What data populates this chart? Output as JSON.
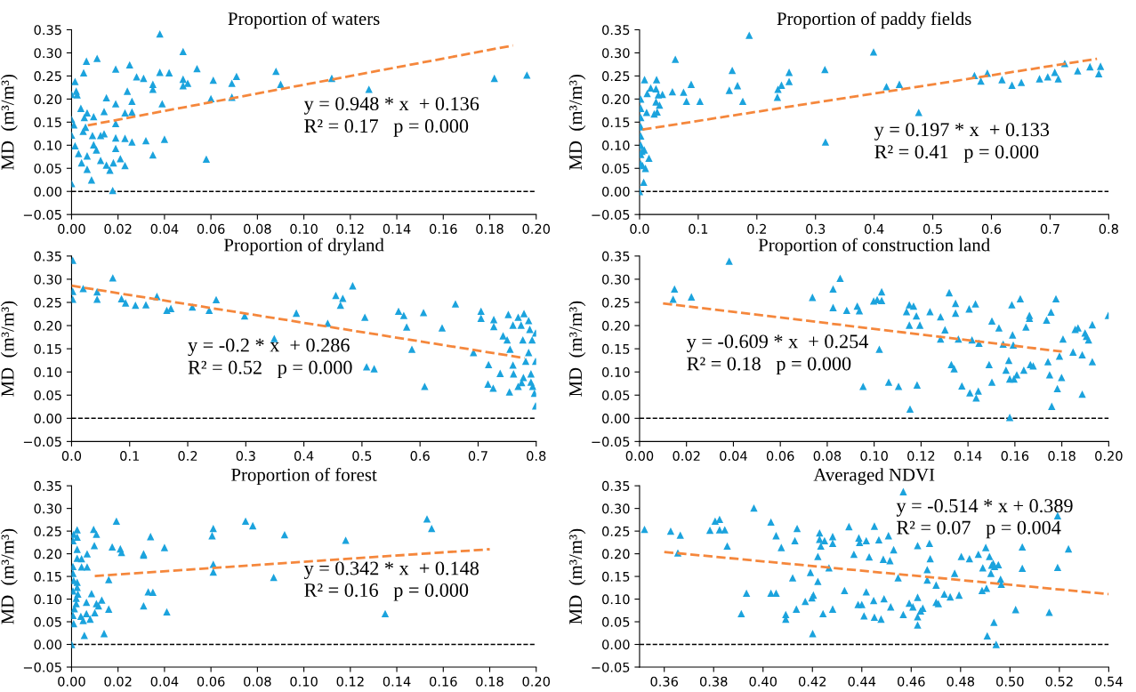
{
  "chart_data": [
    {
      "type": "scatter",
      "title": "Proportion of waters",
      "ylabel": "MD  (m³/m³)",
      "marker": "triangle",
      "grid": false,
      "xlim": [
        0,
        0.2
      ],
      "xticks": [
        {
          "value": 0,
          "label": "0.00"
        },
        {
          "value": 0.02,
          "label": "0.02"
        },
        {
          "value": 0.04,
          "label": "0.04"
        },
        {
          "value": 0.06,
          "label": "0.06"
        },
        {
          "value": 0.08,
          "label": "0.08"
        },
        {
          "value": 0.1,
          "label": "0.10"
        },
        {
          "value": 0.12,
          "label": "0.12"
        },
        {
          "value": 0.14,
          "label": "0.14"
        },
        {
          "value": 0.16,
          "label": "0.16"
        },
        {
          "value": 0.18,
          "label": "0.18"
        },
        {
          "value": 0.2,
          "label": "0.20"
        }
      ],
      "ylim": [
        -0.05,
        0.35
      ],
      "yticks": [
        {
          "value": -0.05,
          "label": "−0.05"
        },
        {
          "value": 0,
          "label": "0.00"
        },
        {
          "value": 0.05,
          "label": "0.05"
        },
        {
          "value": 0.1,
          "label": "0.10"
        },
        {
          "value": 0.15,
          "label": "0.15"
        },
        {
          "value": 0.2,
          "label": "0.20"
        },
        {
          "value": 0.25,
          "label": "0.25"
        },
        {
          "value": 0.3,
          "label": "0.30"
        },
        {
          "value": 0.35,
          "label": "0.35"
        }
      ],
      "series": [
        {
          "color": "#1ba3dd",
          "x": [
            0.038,
            0.048,
            0.011,
            0.0064,
            0.0052,
            0.019,
            0.025,
            0.038,
            0.028,
            0.031,
            0.035,
            0.035,
            0.042,
            0.048,
            0.048,
            0.05,
            0.054,
            0.061,
            0.071,
            0.069,
            0.069,
            0.06,
            0.088,
            0.09,
            0.112,
            0.128,
            0.182,
            0.196,
            0.0015,
            0.002,
            0.0,
            0.0024,
            0.015,
            0.019,
            0.024,
            0.026,
            0.026,
            0.023,
            0.039,
            0.019,
            0.014,
            0.004,
            0.0067,
            0.0055,
            0.0,
            0.001,
            0.0095,
            0.006,
            0.0125,
            0.014,
            0.005,
            0.0,
            0.0015,
            0.009,
            0.019,
            0.019,
            0.023,
            0.026,
            0.04,
            0.032,
            0.035,
            0.0095,
            0.0107,
            0.0125,
            0.015,
            0.0067,
            0.0067,
            0.0086,
            0.0043,
            0.003,
            0.021,
            0.023,
            0.018,
            0.0165,
            0.0177,
            0.0,
            0.058
          ],
          "values": [
            0.341,
            0.303,
            0.288,
            0.282,
            0.257,
            0.265,
            0.274,
            0.258,
            0.248,
            0.245,
            0.232,
            0.221,
            0.257,
            0.243,
            0.229,
            0.234,
            0.266,
            0.241,
            0.249,
            0.234,
            0.204,
            0.201,
            0.26,
            0.232,
            0.245,
            0.221,
            0.245,
            0.252,
            0.238,
            0.217,
            0.21,
            0.209,
            0.203,
            0.19,
            0.217,
            0.195,
            0.172,
            0.17,
            0.19,
            0.147,
            0.173,
            0.18,
            0.17,
            0.16,
            0.156,
            0.144,
            0.162,
            0.139,
            0.121,
            0.125,
            0.13,
            0.122,
            0.099,
            0.121,
            0.116,
            0.093,
            0.115,
            0.107,
            0.113,
            0.11,
            0.079,
            0.101,
            0.09,
            0.067,
            0.057,
            0.077,
            0.048,
            0.025,
            0.062,
            0.082,
            0.071,
            0.056,
            0.062,
            0.046,
            0.002,
            0.017,
            0.07
          ]
        },
        {
          "type": "line",
          "marker": "none",
          "line_style": "dashed",
          "color": "#f5873c",
          "x": [
            0.007,
            0.19
          ],
          "values": [
            0.143,
            0.316
          ]
        }
      ],
      "ref_lines": [
        {
          "axis": "y",
          "value": 0,
          "color": "#000000",
          "line_style": "dashed"
        }
      ],
      "annotations": [
        "y = 0.948 * x  + 0.136",
        "R² = 0.17   p = 0.000"
      ]
    },
    {
      "type": "scatter",
      "title": "Proportion of paddy fields",
      "ylabel": "MD  (m³/m³)",
      "marker": "triangle",
      "grid": false,
      "xlim": [
        0,
        0.8
      ],
      "xticks": [
        {
          "value": 0,
          "label": "0.0"
        },
        {
          "value": 0.1,
          "label": "0.1"
        },
        {
          "value": 0.2,
          "label": "0.2"
        },
        {
          "value": 0.3,
          "label": "0.3"
        },
        {
          "value": 0.4,
          "label": "0.4"
        },
        {
          "value": 0.5,
          "label": "0.5"
        },
        {
          "value": 0.6,
          "label": "0.6"
        },
        {
          "value": 0.7,
          "label": "0.7"
        },
        {
          "value": 0.8,
          "label": "0.8"
        }
      ],
      "ylim": [
        -0.05,
        0.35
      ],
      "yticks": [
        {
          "value": -0.05,
          "label": "−0.05"
        },
        {
          "value": 0,
          "label": "0.00"
        },
        {
          "value": 0.05,
          "label": "0.05"
        },
        {
          "value": 0.1,
          "label": "0.10"
        },
        {
          "value": 0.15,
          "label": "0.15"
        },
        {
          "value": 0.2,
          "label": "0.20"
        },
        {
          "value": 0.25,
          "label": "0.25"
        },
        {
          "value": 0.3,
          "label": "0.30"
        },
        {
          "value": 0.35,
          "label": "0.35"
        }
      ],
      "series": [
        {
          "color": "#1ba3dd",
          "x": [
            0.187,
            0.399,
            0.061,
            0.158,
            0.316,
            0.029,
            0.028,
            0.0085,
            0.019,
            0.013,
            0.032,
            0.034,
            0.028,
            0.03,
            0.012,
            0.025,
            0.039,
            0.056,
            0.075,
            0.088,
            0.08,
            0.103,
            0.153,
            0.167,
            0.176,
            0.235,
            0.236,
            0.242,
            0.255,
            0.255,
            0.421,
            0.443,
            0.476,
            0.317,
            0.571,
            0.582,
            0.593,
            0.618,
            0.635,
            0.651,
            0.682,
            0.696,
            0.708,
            0.714,
            0.725,
            0.747,
            0.768,
            0.783,
            0.786,
            0.002,
            0.002,
            0.002,
            0.002,
            0.002,
            0.002,
            0.002,
            0.002,
            0.008,
            0.016,
            0.01,
            0.007,
            0.005,
            0.004,
            0.0
          ],
          "values": [
            0.338,
            0.302,
            0.286,
            0.262,
            0.264,
            0.242,
            0.222,
            0.242,
            0.224,
            0.212,
            0.209,
            0.187,
            0.194,
            0.172,
            0.171,
            0.168,
            0.21,
            0.216,
            0.215,
            0.232,
            0.195,
            0.195,
            0.219,
            0.229,
            0.195,
            0.204,
            0.221,
            0.23,
            0.238,
            0.258,
            0.227,
            0.232,
            0.171,
            0.107,
            0.251,
            0.239,
            0.256,
            0.242,
            0.23,
            0.236,
            0.244,
            0.248,
            0.258,
            0.244,
            0.277,
            0.261,
            0.27,
            0.255,
            0.271,
            0.2,
            0.18,
            0.16,
            0.14,
            0.12,
            0.1,
            0.08,
            0.06,
            0.09,
            0.072,
            0.05,
            0.02,
            0.056,
            0.087,
            0.0
          ]
        },
        {
          "type": "line",
          "marker": "none",
          "line_style": "dashed",
          "color": "#f5873c",
          "x": [
            0.005,
            0.78
          ],
          "values": [
            0.134,
            0.287
          ]
        }
      ],
      "ref_lines": [
        {
          "axis": "y",
          "value": 0,
          "color": "#000000",
          "line_style": "dashed"
        }
      ],
      "annotations": [
        "y = 0.197 * x  + 0.133",
        "R² = 0.41   p = 0.000"
      ]
    },
    {
      "type": "scatter",
      "title": "Proportion of dryland",
      "ylabel": "MD  (m³/m³)",
      "marker": "triangle",
      "grid": false,
      "xlim": [
        0,
        0.8
      ],
      "xticks": [
        {
          "value": 0,
          "label": "0.0"
        },
        {
          "value": 0.1,
          "label": "0.1"
        },
        {
          "value": 0.2,
          "label": "0.2"
        },
        {
          "value": 0.3,
          "label": "0.3"
        },
        {
          "value": 0.4,
          "label": "0.4"
        },
        {
          "value": 0.5,
          "label": "0.5"
        },
        {
          "value": 0.6,
          "label": "0.6"
        },
        {
          "value": 0.7,
          "label": "0.7"
        },
        {
          "value": 0.8,
          "label": "0.8"
        }
      ],
      "ylim": [
        -0.05,
        0.35
      ],
      "yticks": [
        {
          "value": -0.05,
          "label": "−0.05"
        },
        {
          "value": 0,
          "label": "0.00"
        },
        {
          "value": 0.05,
          "label": "0.05"
        },
        {
          "value": 0.1,
          "label": "0.10"
        },
        {
          "value": 0.15,
          "label": "0.15"
        },
        {
          "value": 0.2,
          "label": "0.20"
        },
        {
          "value": 0.25,
          "label": "0.25"
        },
        {
          "value": 0.3,
          "label": "0.30"
        },
        {
          "value": 0.35,
          "label": "0.35"
        }
      ],
      "series": [
        {
          "color": "#1ba3dd",
          "x": [
            0.002,
            0.002,
            0.002,
            0.02,
            0.071,
            0.044,
            0.044,
            0.086,
            0.093,
            0.11,
            0.128,
            0.147,
            0.164,
            0.171,
            0.208,
            0.237,
            0.249,
            0.298,
            0.349,
            0.387,
            0.441,
            0.455,
            0.463,
            0.467,
            0.484,
            0.505,
            0.508,
            0.521,
            0.563,
            0.572,
            0.577,
            0.586,
            0.606,
            0.608,
            0.638,
            0.661,
            0.692,
            0.705,
            0.705,
            0.718,
            0.717,
            0.726,
            0.727,
            0.727,
            0.738,
            0.743,
            0.75,
            0.752,
            0.755,
            0.754,
            0.76,
            0.76,
            0.761,
            0.769,
            0.769,
            0.775,
            0.774,
            0.777,
            0.778,
            0.779,
            0.782,
            0.787,
            0.787,
            0.789,
            0.791,
            0.791,
            0.793,
            0.794,
            0.797,
            0.799,
            0.799,
            0.799
          ],
          "values": [
            0.341,
            0.274,
            0.257,
            0.28,
            0.303,
            0.273,
            0.257,
            0.258,
            0.249,
            0.244,
            0.245,
            0.263,
            0.233,
            0.237,
            0.24,
            0.233,
            0.256,
            0.221,
            0.172,
            0.227,
            0.205,
            0.265,
            0.244,
            0.259,
            0.286,
            0.218,
            0.111,
            0.107,
            0.231,
            0.222,
            0.197,
            0.149,
            0.228,
            0.069,
            0.195,
            0.247,
            0.142,
            0.231,
            0.216,
            0.116,
            0.074,
            0.065,
            0.213,
            0.198,
            0.097,
            0.178,
            0.169,
            0.224,
            0.149,
            0.057,
            0.201,
            0.115,
            0.096,
            0.218,
            0.069,
            0.077,
            0.201,
            0.169,
            0.088,
            0.226,
            0.123,
            0.211,
            0.142,
            0.192,
            0.096,
            0.078,
            0.169,
            0.069,
            0.054,
            0.027,
            0.184,
            0.123
          ]
        },
        {
          "type": "line",
          "marker": "none",
          "line_style": "dashed",
          "color": "#f5873c",
          "x": [
            0,
            0.78
          ],
          "values": [
            0.286,
            0.13
          ]
        }
      ],
      "ref_lines": [
        {
          "axis": "y",
          "value": 0,
          "color": "#000000",
          "line_style": "dashed"
        }
      ],
      "annotations": [
        "y = -0.2 * x  + 0.286",
        "R² = 0.52   p = 0.000"
      ]
    },
    {
      "type": "scatter",
      "title": "Proportion of construction land",
      "ylabel": "MD  (m³/m³)",
      "marker": "triangle",
      "grid": false,
      "xlim": [
        0,
        0.2
      ],
      "xticks": [
        {
          "value": 0,
          "label": "0.00"
        },
        {
          "value": 0.02,
          "label": "0.02"
        },
        {
          "value": 0.04,
          "label": "0.04"
        },
        {
          "value": 0.06,
          "label": "0.06"
        },
        {
          "value": 0.08,
          "label": "0.08"
        },
        {
          "value": 0.1,
          "label": "0.10"
        },
        {
          "value": 0.12,
          "label": "0.12"
        },
        {
          "value": 0.14,
          "label": "0.14"
        },
        {
          "value": 0.16,
          "label": "0.16"
        },
        {
          "value": 0.18,
          "label": "0.18"
        },
        {
          "value": 0.2,
          "label": "0.20"
        }
      ],
      "ylim": [
        -0.05,
        0.35
      ],
      "yticks": [
        {
          "value": -0.05,
          "label": "−0.05"
        },
        {
          "value": 0,
          "label": "0.00"
        },
        {
          "value": 0.05,
          "label": "0.05"
        },
        {
          "value": 0.1,
          "label": "0.10"
        },
        {
          "value": 0.15,
          "label": "0.15"
        },
        {
          "value": 0.2,
          "label": "0.20"
        },
        {
          "value": 0.25,
          "label": "0.25"
        },
        {
          "value": 0.3,
          "label": "0.30"
        },
        {
          "value": 0.35,
          "label": "0.35"
        }
      ],
      "series": [
        {
          "color": "#1ba3dd",
          "x": [
            0.0149,
            0.0143,
            0.0221,
            0.0382,
            0.0737,
            0.0825,
            0.0825,
            0.0855,
            0.0883,
            0.0928,
            0.0937,
            0.0953,
            0.0998,
            0.1013,
            0.1032,
            0.1032,
            0.1022,
            0.1062,
            0.1104,
            0.1138,
            0.115,
            0.115,
            0.1153,
            0.1168,
            0.118,
            0.1183,
            0.1195,
            0.1238,
            0.1283,
            0.1283,
            0.1302,
            0.132,
            0.1329,
            0.1341,
            0.1347,
            0.1347,
            0.1359,
            0.1374,
            0.1405,
            0.1408,
            0.1417,
            0.1432,
            0.1435,
            0.1444,
            0.1447,
            0.149,
            0.1502,
            0.1502,
            0.1532,
            0.155,
            0.1562,
            0.1574,
            0.1578,
            0.1578,
            0.1587,
            0.159,
            0.1593,
            0.1596,
            0.1608,
            0.1623,
            0.1638,
            0.1647,
            0.1662,
            0.1662,
            0.1666,
            0.1678,
            0.1735,
            0.1741,
            0.1754,
            0.1748,
            0.1757,
            0.1775,
            0.1781,
            0.179,
            0.1799,
            0.1805,
            0.1848,
            0.1857,
            0.1869,
            0.1887,
            0.1887,
            0.1899,
            0.1905,
            0.1914,
            0.193,
            0.193,
            0.1998
          ],
          "values": [
            0.279,
            0.257,
            0.262,
            0.339,
            0.261,
            0.279,
            0.239,
            0.302,
            0.233,
            0.242,
            0.232,
            0.069,
            0.253,
            0.256,
            0.273,
            0.254,
            0.149,
            0.078,
            0.069,
            0.23,
            0.245,
            0.201,
            0.02,
            0.242,
            0.221,
            0.072,
            0.201,
            0.23,
            0.219,
            0.171,
            0.191,
            0.271,
            0.116,
            0.107,
            0.248,
            0.227,
            0.171,
            0.07,
            0.236,
            0.055,
            0.169,
            0.247,
            0.044,
            0.059,
            0.162,
            0.116,
            0.21,
            0.078,
            0.195,
            0.16,
            0.104,
            0.125,
            0.085,
            0.002,
            0.245,
            0.18,
            0.158,
            0.085,
            0.094,
            0.258,
            0.104,
            0.197,
            0.222,
            0.216,
            0.116,
            0.113,
            0.212,
            0.122,
            0.229,
            0.094,
            0.026,
            0.258,
            0.064,
            0.134,
            0.088,
            0.171,
            0.143,
            0.192,
            0.195,
            0.137,
            0.052,
            0.184,
            0.177,
            0.169,
            0.202,
            0.122,
            0.222
          ]
        },
        {
          "type": "line",
          "marker": "none",
          "line_style": "dashed",
          "color": "#f5873c",
          "x": [
            0.01,
            0.18
          ],
          "values": [
            0.248,
            0.144
          ]
        }
      ],
      "ref_lines": [
        {
          "axis": "y",
          "value": 0,
          "color": "#000000",
          "line_style": "dashed"
        }
      ],
      "annotations": [
        "y = -0.609 * x  + 0.254",
        "R² = 0.18   p = 0.000"
      ]
    },
    {
      "type": "scatter",
      "title": "Proportion of forest",
      "ylabel": "MD  (m³/m³)",
      "marker": "triangle",
      "grid": false,
      "xlim": [
        0,
        0.2
      ],
      "xticks": [
        {
          "value": 0,
          "label": "0.00"
        },
        {
          "value": 0.02,
          "label": "0.02"
        },
        {
          "value": 0.04,
          "label": "0.04"
        },
        {
          "value": 0.06,
          "label": "0.06"
        },
        {
          "value": 0.08,
          "label": "0.08"
        },
        {
          "value": 0.1,
          "label": "0.10"
        },
        {
          "value": 0.12,
          "label": "0.12"
        },
        {
          "value": 0.14,
          "label": "0.14"
        },
        {
          "value": 0.16,
          "label": "0.16"
        },
        {
          "value": 0.18,
          "label": "0.18"
        },
        {
          "value": 0.2,
          "label": "0.20"
        }
      ],
      "ylim": [
        -0.05,
        0.35
      ],
      "yticks": [
        {
          "value": -0.05,
          "label": "−0.05"
        },
        {
          "value": 0,
          "label": "0.00"
        },
        {
          "value": 0.05,
          "label": "0.05"
        },
        {
          "value": 0.1,
          "label": "0.10"
        },
        {
          "value": 0.15,
          "label": "0.15"
        },
        {
          "value": 0.2,
          "label": "0.20"
        },
        {
          "value": 0.25,
          "label": "0.25"
        },
        {
          "value": 0.3,
          "label": "0.30"
        },
        {
          "value": 0.35,
          "label": "0.35"
        }
      ],
      "series": [
        {
          "color": "#1ba3dd",
          "x": [
            0.0193,
            0.0749,
            0.078,
            0.153,
            0.155,
            0.118,
            0.135,
            0.0917,
            0.087,
            0.0605,
            0.061,
            0.061,
            0.061,
            0.034,
            0.033,
            0.035,
            0.04,
            0.041,
            0.031,
            0.031,
            0.031,
            0.021,
            0.0215,
            0.0175,
            0.016,
            0.016,
            0.014,
            0.013,
            0.0095,
            0.0107,
            0.0098,
            0.0086,
            0.01,
            0.0116,
            0.0107,
            0.008,
            0.0064,
            0.0055,
            0.005,
            0.004,
            0.0067,
            0.0067,
            0.0064,
            0.0043,
            0.0043,
            0.0024,
            0.0024,
            0.0024,
            0.0024,
            0.0024,
            0.0027,
            0.002,
            0.0024,
            0.002,
            0.0009,
            0.0006,
            0.0006,
            0.0006,
            0.0009,
            0.0006,
            0.0012,
            0.0009,
            0.0006,
            0.0
          ],
          "values": [
            0.272,
            0.272,
            0.262,
            0.277,
            0.256,
            0.23,
            0.068,
            0.242,
            0.148,
            0.24,
            0.256,
            0.177,
            0.16,
            0.238,
            0.116,
            0.115,
            0.214,
            0.072,
            0.197,
            0.2,
            0.085,
            0.211,
            0.203,
            0.215,
            0.078,
            0.143,
            0.024,
            0.098,
            0.254,
            0.243,
            0.218,
            0.112,
            0.07,
            0.085,
            0.09,
            0.056,
            0.068,
            0.02,
            0.053,
            0.062,
            0.2,
            0.171,
            0.093,
            0.189,
            0.171,
            0.253,
            0.237,
            0.21,
            0.19,
            0.126,
            0.111,
            0.102,
            0.137,
            0.09,
            0.243,
            0.229,
            0.172,
            0.157,
            0.141,
            0.118,
            0.079,
            0.046,
            0.064,
            0.0
          ]
        },
        {
          "type": "line",
          "marker": "none",
          "line_style": "dashed",
          "color": "#f5873c",
          "x": [
            0.01,
            0.18
          ],
          "values": [
            0.151,
            0.21
          ]
        }
      ],
      "ref_lines": [
        {
          "axis": "y",
          "value": 0,
          "color": "#000000",
          "line_style": "dashed"
        }
      ],
      "annotations": [
        "y = 0.342 * x  + 0.148",
        "R² = 0.16   p = 0.000"
      ]
    },
    {
      "type": "scatter",
      "title": "Averaged NDVI",
      "ylabel": "MD  (m³/m³)",
      "marker": "triangle",
      "grid": false,
      "xlim": [
        0.35,
        0.54
      ],
      "xticks": [
        {
          "value": 0.36,
          "label": "0.36"
        },
        {
          "value": 0.38,
          "label": "0.38"
        },
        {
          "value": 0.4,
          "label": "0.40"
        },
        {
          "value": 0.42,
          "label": "0.42"
        },
        {
          "value": 0.44,
          "label": "0.44"
        },
        {
          "value": 0.46,
          "label": "0.46"
        },
        {
          "value": 0.48,
          "label": "0.48"
        },
        {
          "value": 0.5,
          "label": "0.50"
        },
        {
          "value": 0.52,
          "label": "0.52"
        },
        {
          "value": 0.54,
          "label": "0.54"
        }
      ],
      "ylim": [
        -0.05,
        0.35
      ],
      "yticks": [
        {
          "value": -0.05,
          "label": "−0.05"
        },
        {
          "value": 0,
          "label": "0.00"
        },
        {
          "value": 0.05,
          "label": "0.05"
        },
        {
          "value": 0.1,
          "label": "0.10"
        },
        {
          "value": 0.15,
          "label": "0.15"
        },
        {
          "value": 0.2,
          "label": "0.20"
        },
        {
          "value": 0.25,
          "label": "0.25"
        },
        {
          "value": 0.3,
          "label": "0.30"
        },
        {
          "value": 0.35,
          "label": "0.35"
        }
      ],
      "series": [
        {
          "color": "#1ba3dd",
          "x": [
            0.352,
            0.3626,
            0.3665,
            0.3655,
            0.3785,
            0.3806,
            0.3824,
            0.3824,
            0.3845,
            0.3855,
            0.3912,
            0.3933,
            0.3963,
            0.4032,
            0.4032,
            0.4053,
            0.4053,
            0.4074,
            0.4092,
            0.4092,
            0.412,
            0.4129,
            0.4138,
            0.4135,
            0.4171,
            0.4192,
            0.4198,
            0.4204,
            0.4201,
            0.4222,
            0.4222,
            0.4229,
            0.4229,
            0.4234,
            0.4249,
            0.4243,
            0.4267,
            0.4282,
            0.4282,
            0.4282,
            0.433,
            0.4348,
            0.4368,
            0.4385,
            0.4388,
            0.4391,
            0.44,
            0.4409,
            0.4418,
            0.4418,
            0.443,
            0.4448,
            0.4451,
            0.4451,
            0.4469,
            0.4478,
            0.4487,
            0.449,
            0.4508,
            0.4514,
            0.4517,
            0.4529,
            0.4547,
            0.4568,
            0.4568,
            0.4592,
            0.4607,
            0.4626,
            0.4626,
            0.4626,
            0.4626,
            0.4638,
            0.4647,
            0.4665,
            0.4665,
            0.4674,
            0.4677,
            0.4701,
            0.4701,
            0.471,
            0.4734,
            0.4758,
            0.4776,
            0.4794,
            0.4803,
            0.4836,
            0.4872,
            0.489,
            0.4887,
            0.4902,
            0.4905,
            0.4908,
            0.4917,
            0.4923,
            0.4926,
            0.4932,
            0.4935,
            0.4938,
            0.4944,
            0.4953,
            0.4962,
            0.4965,
            0.5023,
            0.505,
            0.505,
            0.5159,
            0.5193,
            0.5193,
            0.5237
          ],
          "values": [
            0.254,
            0.25,
            0.241,
            0.202,
            0.252,
            0.272,
            0.276,
            0.253,
            0.253,
            0.217,
            0.068,
            0.113,
            0.301,
            0.27,
            0.113,
            0.24,
            0.113,
            0.214,
            0.066,
            0.056,
            0.147,
            0.229,
            0.256,
            0.078,
            0.095,
            0.159,
            0.103,
            0.109,
            0.024,
            0.194,
            0.139,
            0.246,
            0.232,
            0.217,
            0.229,
            0.068,
            0.169,
            0.238,
            0.223,
            0.078,
            0.119,
            0.26,
            0.199,
            0.088,
            0.235,
            0.225,
            0.088,
            0.063,
            0.229,
            0.116,
            0.193,
            0.097,
            0.06,
            0.261,
            0.231,
            0.056,
            0.188,
            0.101,
            0.24,
            0.185,
            0.083,
            0.209,
            0.147,
            0.337,
            0.066,
            0.091,
            0.083,
            0.218,
            0.104,
            0.061,
            0.043,
            0.074,
            0.08,
            0.165,
            0.142,
            0.223,
            0.189,
            0.131,
            0.093,
            0.09,
            0.111,
            0.105,
            0.157,
            0.109,
            0.194,
            0.189,
            0.199,
            0.169,
            0.119,
            0.214,
            0.124,
            0.019,
            0.194,
            0.157,
            0.175,
            0.179,
            0.049,
            0.172,
            0.0,
            0.176,
            0.144,
            0.133,
            0.077,
            0.215,
            0.168,
            0.071,
            0.284,
            0.17,
            0.211
          ]
        },
        {
          "type": "line",
          "marker": "none",
          "line_style": "dashed",
          "color": "#f5873c",
          "x": [
            0.36,
            0.54
          ],
          "values": [
            0.204,
            0.111
          ]
        }
      ],
      "ref_lines": [
        {
          "axis": "y",
          "value": 0,
          "color": "#000000",
          "line_style": "dashed"
        }
      ],
      "annotations": [
        "y = -0.514 * x + 0.389",
        "R² = 0.07   p = 0.004"
      ]
    }
  ]
}
